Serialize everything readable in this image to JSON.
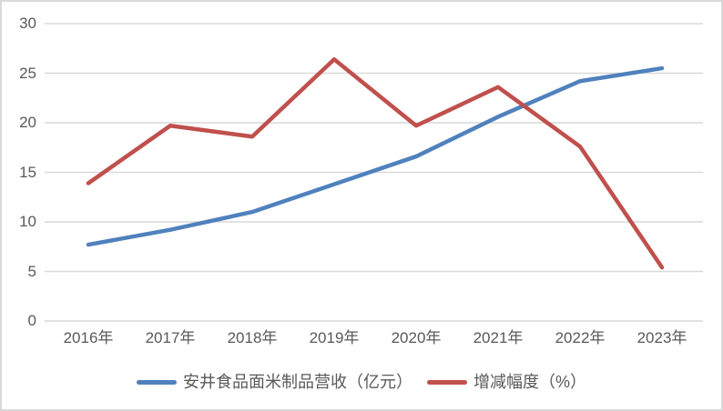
{
  "chart_data": {
    "type": "line",
    "categories": [
      "2016年",
      "2017年",
      "2018年",
      "2019年",
      "2020年",
      "2021年",
      "2022年",
      "2023年"
    ],
    "series": [
      {
        "id": "revenue",
        "name": "安井食品面米制品营收（亿元）",
        "color": "#4F81BD",
        "values": [
          7.7,
          9.2,
          11.0,
          13.8,
          16.6,
          20.6,
          24.2,
          25.5
        ]
      },
      {
        "id": "growth",
        "name": "增减幅度（%）",
        "color": "#C0504D",
        "values": [
          13.9,
          19.7,
          18.6,
          26.4,
          19.7,
          23.6,
          17.6,
          5.4
        ]
      }
    ],
    "yticks": [
      0,
      5,
      10,
      15,
      20,
      25,
      30
    ],
    "ylim": [
      0,
      30
    ],
    "grid": true,
    "legend_position": "bottom"
  },
  "colors": {
    "gridline": "#D9D9D9",
    "axis_text": "#595959",
    "frame_border": "#D9D9D9",
    "background": "#FFFFFF"
  }
}
